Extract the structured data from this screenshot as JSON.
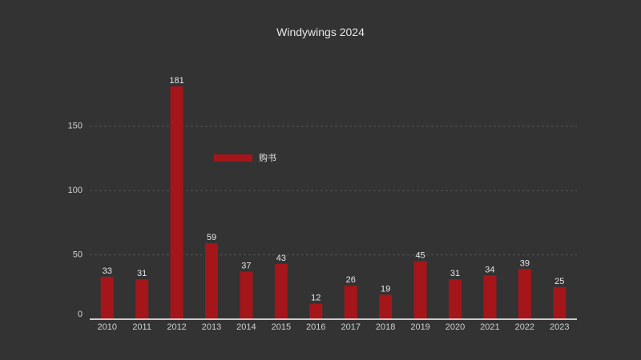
{
  "chart_data": {
    "type": "bar",
    "title": "Windywings 2024",
    "categories": [
      "2010",
      "2011",
      "2012",
      "2013",
      "2014",
      "2015",
      "2016",
      "2017",
      "2018",
      "2019",
      "2020",
      "2021",
      "2022",
      "2023"
    ],
    "series": [
      {
        "name": "购书",
        "values": [
          33,
          31,
          181,
          59,
          37,
          43,
          12,
          26,
          19,
          45,
          31,
          34,
          39,
          25
        ]
      }
    ],
    "ylim": [
      0,
      181
    ],
    "yticks": [
      0,
      50,
      100,
      150
    ],
    "grid": true,
    "legend_position": "inside-top-left",
    "colors": {
      "background": "#333333",
      "bar": "#a4161a",
      "grid": "#555555",
      "axis": "#ffffff",
      "text": "#e6e6e6"
    }
  }
}
